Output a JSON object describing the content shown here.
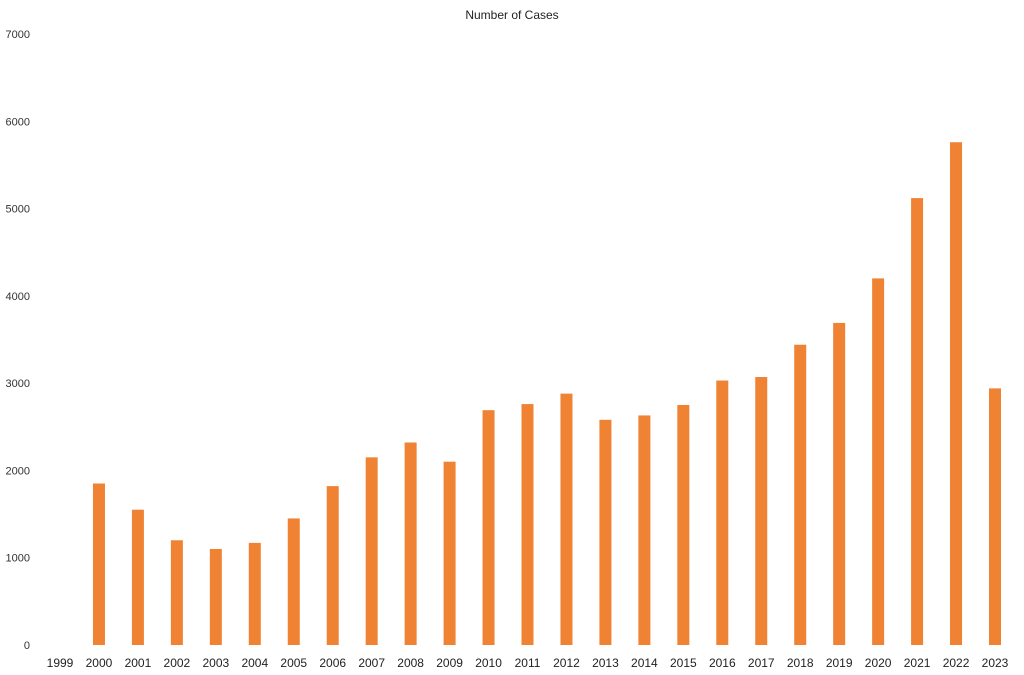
{
  "chart_data": {
    "type": "bar",
    "title": "Number of Cases",
    "xlabel": "",
    "ylabel": "",
    "ylim": [
      0,
      7000
    ],
    "yticks": [
      "0",
      "1000",
      "2000",
      "3000",
      "4000",
      "5000",
      "6000",
      "7000"
    ],
    "grid": false,
    "legend": "none",
    "categories": [
      "1999",
      "2000",
      "2001",
      "2002",
      "2003",
      "2004",
      "2005",
      "2006",
      "2007",
      "2008",
      "2009",
      "2010",
      "2011",
      "2012",
      "2013",
      "2014",
      "2015",
      "2016",
      "2017",
      "2018",
      "2019",
      "2020",
      "2021",
      "2022",
      "2023"
    ],
    "values": [
      0,
      1850,
      1550,
      1200,
      1100,
      1170,
      1450,
      1820,
      2150,
      2320,
      2100,
      2690,
      2760,
      2880,
      2580,
      2630,
      2750,
      3030,
      3070,
      3440,
      3690,
      4200,
      5120,
      5760,
      2940
    ],
    "bar_color": "#ef8233"
  }
}
